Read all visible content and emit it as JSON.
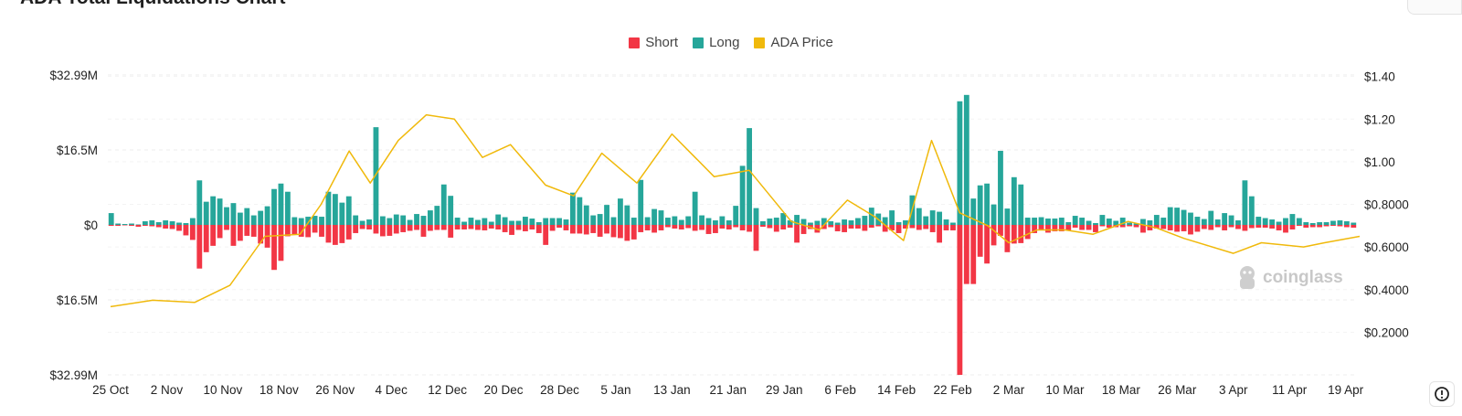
{
  "header": {
    "title": "ADA Total Liquidations Chart"
  },
  "legend": [
    {
      "label": "Short",
      "color": "#f23645"
    },
    {
      "label": "Long",
      "color": "#26a69a"
    },
    {
      "label": "ADA Price",
      "color": "#f0b90b"
    }
  ],
  "watermark": "coinglass",
  "icons": {
    "help": "alert-clock-icon",
    "watermark_logo": "coinglass-logo-icon"
  },
  "chart_data": {
    "type": "bar",
    "title": "ADA Total Liquidations Chart",
    "x_tick_labels": [
      "25 Oct",
      "2 Nov",
      "10 Nov",
      "18 Nov",
      "26 Nov",
      "4 Dec",
      "12 Dec",
      "20 Dec",
      "28 Dec",
      "5 Jan",
      "13 Jan",
      "21 Jan",
      "29 Jan",
      "6 Feb",
      "14 Feb",
      "22 Feb",
      "2 Mar",
      "10 Mar",
      "18 Mar",
      "26 Mar",
      "3 Apr",
      "11 Apr",
      "19 Apr"
    ],
    "y_left_tick_labels": [
      "$32.99M",
      "$16.5M",
      "$0",
      "$16.5M",
      "$32.99M"
    ],
    "y_left_range": [
      -32.99,
      32.99
    ],
    "y_left_unit": "USD millions (long positive, short negative)",
    "y_right_tick_labels": [
      "$1.40",
      "$1.20",
      "$1.00",
      "$0.8000",
      "$0.6000",
      "$0.4000",
      "$0.2000"
    ],
    "y_right_range": [
      0,
      1.45
    ],
    "grid": true,
    "legend_position": "top-center",
    "series": [
      {
        "name": "Long",
        "color": "#26a69a",
        "values": [
          2.6,
          0.3,
          0.2,
          0.3,
          0.1,
          0.8,
          1.0,
          0.6,
          1.0,
          0.8,
          0.5,
          0.4,
          1.5,
          9.8,
          5.1,
          6.3,
          5.8,
          3.9,
          4.8,
          2.7,
          3.7,
          2.1,
          3.1,
          4.1,
          7.9,
          9.1,
          7.3,
          1.7,
          1.5,
          1.8,
          2.0,
          1.8,
          7.3,
          6.8,
          4.9,
          6.3,
          2.1,
          0.9,
          1.2,
          21.5,
          1.9,
          1.5,
          2.3,
          2.1,
          1.1,
          2.4,
          2.0,
          3.2,
          4.2,
          8.9,
          6.4,
          1.6,
          0.7,
          1.6,
          1.1,
          1.5,
          0.7,
          2.3,
          1.7,
          0.9,
          0.9,
          1.8,
          1.4,
          0.6,
          1.5,
          1.5,
          1.5,
          1.2,
          7.1,
          6.1,
          4.3,
          2.1,
          2.4,
          4.4,
          1.7,
          5.8,
          4.3,
          1.6,
          9.9,
          1.7,
          3.5,
          3.2,
          1.6,
          1.9,
          1.1,
          1.9,
          7.3,
          2.1,
          1.5,
          1.0,
          1.9,
          1.0,
          4.2,
          13.0,
          21.3,
          3.7,
          0.8,
          1.4,
          1.6,
          2.6,
          1.0,
          2.2,
          1.3,
          0.5,
          0.9,
          1.5,
          0.8,
          0.5,
          1.2,
          1.0,
          1.5,
          2.0,
          3.8,
          2.5,
          1.7,
          3.2,
          0.6,
          1.0,
          6.5,
          3.7,
          1.9,
          3.2,
          2.9,
          1.2,
          0.5,
          27.2,
          28.6,
          5.8,
          8.7,
          9.1,
          4.5,
          16.3,
          3.6,
          10.5,
          8.9,
          1.6,
          1.6,
          1.7,
          1.4,
          1.4,
          1.6,
          0.6,
          2.0,
          1.6,
          0.9,
          0.4,
          2.2,
          1.4,
          0.9,
          1.6,
          0.5,
          0.3,
          1.3,
          1.0,
          2.2,
          1.6,
          3.9,
          3.8,
          3.3,
          2.7,
          1.8,
          1.3,
          3.1,
          1.2,
          2.6,
          2.1,
          1.0,
          9.8,
          6.3,
          1.8,
          1.5,
          1.2,
          0.7,
          1.5,
          2.4,
          1.5,
          0.6,
          0.4,
          0.6,
          0.6,
          0.9,
          1.0,
          0.8,
          0.5
        ],
        "values_short": [
          0.2,
          0.2,
          0.1,
          0.2,
          0.4,
          0.2,
          0.3,
          0.5,
          0.8,
          0.9,
          1.3,
          2.3,
          3.3,
          9.6,
          6.0,
          4.6,
          2.9,
          1.1,
          4.6,
          3.5,
          2.4,
          2.6,
          4.1,
          5.0,
          9.9,
          7.9,
          2.5,
          2.1,
          2.6,
          2.7,
          1.7,
          2.6,
          3.9,
          4.4,
          4.0,
          3.2,
          1.8,
          0.9,
          1.0,
          1.9,
          2.5,
          2.4,
          1.9,
          1.6,
          1.3,
          1.1,
          2.6,
          1.3,
          1.1,
          1.1,
          2.8,
          1.0,
          1.0,
          0.9,
          1.1,
          1.2,
          0.8,
          1.0,
          1.6,
          2.2,
          1.1,
          1.4,
          1.0,
          1.8,
          4.4,
          1.3,
          0.6,
          1.2,
          1.9,
          1.9,
          2.1,
          1.8,
          2.6,
          1.9,
          2.7,
          2.9,
          3.5,
          3.2,
          1.6,
          1.2,
          1.7,
          1.2,
          0.5,
          0.8,
          1.0,
          0.7,
          1.3,
          1.1,
          2.0,
          1.8,
          0.8,
          1.0,
          0.5,
          1.2,
          1.5,
          5.7,
          0.4,
          0.7,
          1.5,
          1.0,
          0.6,
          3.9,
          2.0,
          0.9,
          1.7,
          0.9,
          0.5,
          1.4,
          1.6,
          0.8,
          0.8,
          1.3,
          0.6,
          0.3,
          1.5,
          1.2,
          1.8,
          0.8,
          0.7,
          1.1,
          0.9,
          1.6,
          3.9,
          1.2,
          1.2,
          33.0,
          13.0,
          13.0,
          7.0,
          8.5,
          4.5,
          2.4,
          6.0,
          4.1,
          4.0,
          3.1,
          1.8,
          1.0,
          1.7,
          1.4,
          1.4,
          1.2,
          0.6,
          1.1,
          1.1,
          1.6,
          0.3,
          0.6,
          0.5,
          0.5,
          0.3,
          0.5,
          1.7,
          1.2,
          0.8,
          0.9,
          1.2,
          1.5,
          1.4,
          2.1,
          1.5,
          0.9,
          1.1,
          0.5,
          1.2,
          0.5,
          0.9,
          1.3,
          0.7,
          0.6,
          0.6,
          0.8,
          1.2,
          1.7,
          1.0,
          0.2,
          0.6,
          0.5,
          0.5,
          0.3,
          0.2,
          0.3,
          0.5,
          0.6
        ]
      },
      {
        "name": "ADA Price",
        "color": "#f0b90b",
        "axis": "right",
        "x_days_from_25_Oct": [
          0,
          6,
          12,
          17,
          22,
          27,
          30,
          34,
          37,
          41,
          45,
          49,
          53,
          57,
          62,
          66,
          70,
          75,
          80,
          86,
          91,
          97,
          101,
          105,
          109,
          113,
          117,
          121,
          125,
          128,
          132,
          136,
          140,
          145,
          149,
          153,
          160,
          164,
          170,
          173,
          178
        ],
        "values": [
          0.32,
          0.35,
          0.34,
          0.42,
          0.65,
          0.66,
          0.8,
          1.05,
          0.9,
          1.1,
          1.22,
          1.2,
          1.02,
          1.08,
          0.89,
          0.84,
          1.04,
          0.9,
          1.13,
          0.93,
          0.96,
          0.72,
          0.68,
          0.82,
          0.74,
          0.63,
          1.1,
          0.76,
          0.7,
          0.62,
          0.68,
          0.68,
          0.66,
          0.72,
          0.69,
          0.64,
          0.57,
          0.62,
          0.6,
          0.62,
          0.65
        ]
      }
    ]
  }
}
